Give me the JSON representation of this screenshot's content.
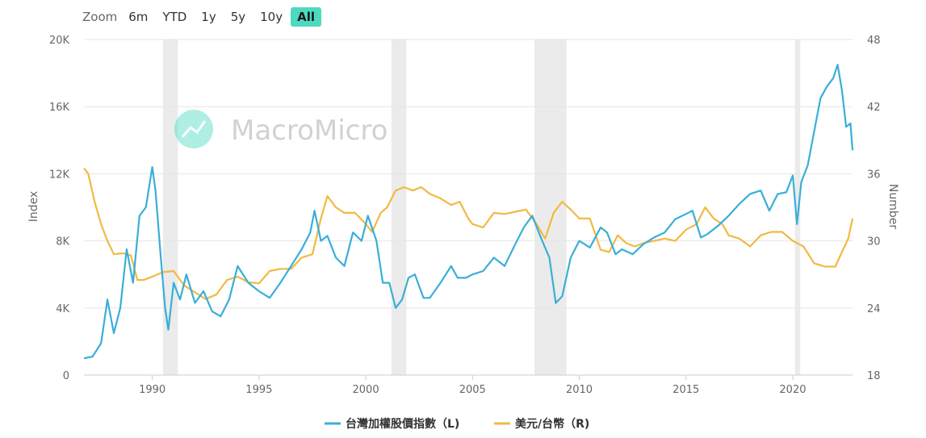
{
  "toolbar": {
    "zoom_label": "Zoom",
    "buttons": [
      "6m",
      "YTD",
      "1y",
      "5y",
      "10y",
      "All"
    ],
    "active": "All"
  },
  "watermark": "MacroMicro",
  "colors": {
    "index_series": "#3aaed8",
    "fx_series": "#f2b942",
    "recession_band": "#ebebeb",
    "grid": "#e6e6e6",
    "active_button": "#4dd9c0"
  },
  "chart_data": {
    "type": "line",
    "x_range": [
      1986.8,
      2022.8
    ],
    "x_ticks": [
      1990,
      1995,
      2000,
      2005,
      2010,
      2015,
      2020
    ],
    "x_tick_labels": [
      "1990",
      "1995",
      "2000",
      "2005",
      "2010",
      "2015",
      "2020"
    ],
    "left_axis": {
      "title": "Index",
      "range": [
        0,
        20000
      ],
      "ticks": [
        0,
        4000,
        8000,
        12000,
        16000,
        20000
      ],
      "tick_labels": [
        "0",
        "4K",
        "8K",
        "12K",
        "16K",
        "20K"
      ]
    },
    "right_axis": {
      "title": "Number",
      "range": [
        18,
        48
      ],
      "ticks": [
        18,
        24,
        30,
        36,
        42,
        48
      ],
      "tick_labels": [
        "18",
        "24",
        "30",
        "36",
        "42",
        "48"
      ]
    },
    "shaded_periods": [
      [
        1990.5,
        1991.2
      ],
      [
        2001.2,
        2001.9
      ],
      [
        2007.9,
        2009.4
      ],
      [
        2020.1,
        2020.35
      ]
    ],
    "series": [
      {
        "name": "台灣加權股價指數（L)",
        "axis": "left",
        "x": [
          1986.8,
          1987.2,
          1987.6,
          1987.9,
          1988.2,
          1988.5,
          1988.8,
          1989.1,
          1989.4,
          1989.7,
          1990.0,
          1990.15,
          1990.4,
          1990.6,
          1990.75,
          1991.0,
          1991.3,
          1991.6,
          1992.0,
          1992.4,
          1992.8,
          1993.2,
          1993.6,
          1994.0,
          1994.5,
          1995.0,
          1995.5,
          1996.0,
          1996.5,
          1997.0,
          1997.4,
          1997.6,
          1997.9,
          1998.2,
          1998.6,
          1999.0,
          1999.4,
          1999.8,
          2000.1,
          2000.5,
          2000.8,
          2001.1,
          2001.4,
          2001.7,
          2002.0,
          2002.3,
          2002.7,
          2003.0,
          2003.5,
          2004.0,
          2004.3,
          2004.7,
          2005.0,
          2005.5,
          2006.0,
          2006.5,
          2007.0,
          2007.4,
          2007.8,
          2008.2,
          2008.6,
          2008.9,
          2009.2,
          2009.6,
          2010.0,
          2010.5,
          2011.0,
          2011.3,
          2011.7,
          2012.0,
          2012.5,
          2013.0,
          2013.5,
          2014.0,
          2014.5,
          2015.0,
          2015.3,
          2015.7,
          2016.0,
          2016.5,
          2017.0,
          2017.5,
          2018.0,
          2018.5,
          2018.9,
          2019.3,
          2019.7,
          2020.0,
          2020.2,
          2020.4,
          2020.7,
          2021.0,
          2021.3,
          2021.6,
          2021.9,
          2022.1,
          2022.3,
          2022.5,
          2022.7,
          2022.8
        ],
        "values": [
          1000,
          1100,
          1900,
          4500,
          2500,
          4000,
          7500,
          5500,
          9500,
          10000,
          12400,
          11000,
          7000,
          4000,
          2700,
          5500,
          4500,
          6000,
          4300,
          5000,
          3800,
          3500,
          4500,
          6500,
          5500,
          5000,
          4600,
          5500,
          6500,
          7500,
          8500,
          9800,
          8000,
          8300,
          7000,
          6500,
          8500,
          8000,
          9500,
          8000,
          5500,
          5500,
          4000,
          4500,
          5800,
          6000,
          4600,
          4600,
          5500,
          6500,
          5800,
          5800,
          6000,
          6200,
          7000,
          6500,
          7800,
          8800,
          9500,
          8200,
          7000,
          4300,
          4700,
          7000,
          8000,
          7600,
          8800,
          8500,
          7200,
          7500,
          7200,
          7800,
          8200,
          8500,
          9300,
          9600,
          9800,
          8200,
          8400,
          8900,
          9500,
          10200,
          10800,
          11000,
          9800,
          10800,
          10900,
          11900,
          9000,
          11500,
          12500,
          14500,
          16500,
          17200,
          17700,
          18500,
          17000,
          14800,
          15000,
          13400
        ]
      },
      {
        "name": "美元/台幣（R)",
        "axis": "right",
        "x": [
          1986.8,
          1987.0,
          1987.3,
          1987.6,
          1987.9,
          1988.2,
          1988.6,
          1989.0,
          1989.3,
          1989.6,
          1990.0,
          1990.5,
          1991.0,
          1991.5,
          1992.0,
          1992.5,
          1993.0,
          1993.5,
          1994.0,
          1994.5,
          1995.0,
          1995.5,
          1996.0,
          1996.5,
          1997.0,
          1997.5,
          1997.9,
          1998.2,
          1998.6,
          1999.0,
          1999.5,
          2000.0,
          2000.3,
          2000.7,
          2001.0,
          2001.4,
          2001.8,
          2002.2,
          2002.6,
          2003.0,
          2003.5,
          2004.0,
          2004.4,
          2004.8,
          2005.0,
          2005.5,
          2006.0,
          2006.5,
          2007.0,
          2007.5,
          2008.0,
          2008.4,
          2008.8,
          2009.2,
          2009.6,
          2010.0,
          2010.5,
          2011.0,
          2011.4,
          2011.8,
          2012.2,
          2012.6,
          2013.0,
          2013.5,
          2014.0,
          2014.5,
          2015.0,
          2015.5,
          2015.9,
          2016.3,
          2016.7,
          2017.0,
          2017.5,
          2018.0,
          2018.5,
          2019.0,
          2019.5,
          2020.0,
          2020.5,
          2021.0,
          2021.5,
          2022.0,
          2022.3,
          2022.6,
          2022.8
        ],
        "values": [
          36.5,
          36.0,
          33.5,
          31.5,
          30.0,
          28.8,
          28.9,
          28.7,
          26.5,
          26.5,
          26.8,
          27.2,
          27.3,
          26.0,
          25.4,
          24.8,
          25.2,
          26.5,
          26.8,
          26.3,
          26.2,
          27.3,
          27.5,
          27.5,
          28.5,
          28.8,
          32.0,
          34.0,
          33.0,
          32.5,
          32.5,
          31.5,
          30.8,
          32.5,
          33.0,
          34.5,
          34.8,
          34.5,
          34.8,
          34.2,
          33.8,
          33.2,
          33.5,
          32.0,
          31.5,
          31.2,
          32.5,
          32.4,
          32.6,
          32.8,
          31.5,
          30.2,
          32.5,
          33.5,
          32.8,
          32.0,
          32.0,
          29.2,
          29.0,
          30.5,
          29.8,
          29.5,
          29.8,
          30.0,
          30.2,
          30.0,
          31.0,
          31.5,
          33.0,
          32.0,
          31.5,
          30.5,
          30.2,
          29.5,
          30.5,
          30.8,
          30.8,
          30.0,
          29.5,
          28.0,
          27.7,
          27.7,
          29.0,
          30.2,
          32.0
        ]
      }
    ],
    "legend_position": "bottom-center",
    "grid": true
  }
}
